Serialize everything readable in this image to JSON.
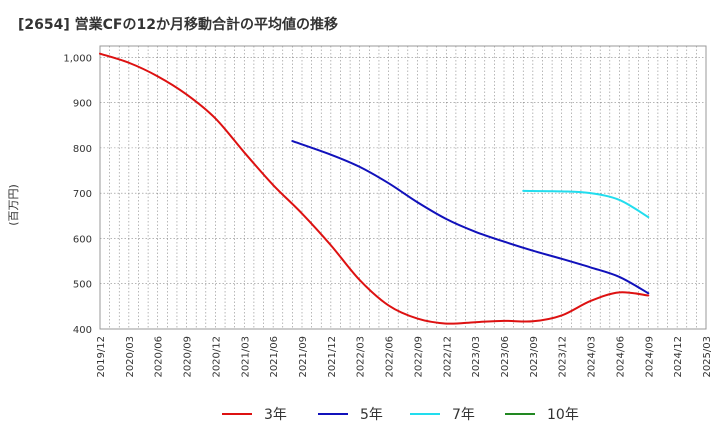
{
  "title": "[2654]  営業CFの12か月移動合計の平均値の推移",
  "chart_data": {
    "type": "line",
    "title": "[2654]  営業CFの12か月移動合計の平均値の推移",
    "ylabel": "(百万円)",
    "xlabel": "",
    "ylim": [
      400,
      1025
    ],
    "yticks": [
      400,
      500,
      600,
      700,
      800,
      900,
      1000
    ],
    "ytick_labels": [
      "400",
      "500",
      "600",
      "700",
      "800",
      "900",
      "1,000"
    ],
    "x_start": "2019-12",
    "x_end": "2025-03",
    "xtick_labels": [
      "2019/12",
      "2020/03",
      "2020/06",
      "2020/09",
      "2020/12",
      "2021/03",
      "2021/06",
      "2021/09",
      "2021/12",
      "2022/03",
      "2022/06",
      "2022/09",
      "2022/12",
      "2023/03",
      "2023/06",
      "2023/09",
      "2023/12",
      "2024/03",
      "2024/06",
      "2024/09",
      "2024/12",
      "2025/03"
    ],
    "grid": true,
    "legend_position": "bottom",
    "series": [
      {
        "name": "3年",
        "color": "#dd1111",
        "points": [
          [
            "2019-12",
            1008
          ],
          [
            "2020-03",
            988
          ],
          [
            "2020-06",
            958
          ],
          [
            "2020-09",
            918
          ],
          [
            "2020-12",
            865
          ],
          [
            "2021-03",
            790
          ],
          [
            "2021-06",
            718
          ],
          [
            "2021-09",
            655
          ],
          [
            "2021-12",
            585
          ],
          [
            "2022-03",
            508
          ],
          [
            "2022-06",
            452
          ],
          [
            "2022-09",
            423
          ],
          [
            "2022-12",
            412
          ],
          [
            "2023-03",
            415
          ],
          [
            "2023-06",
            418
          ],
          [
            "2023-09",
            417
          ],
          [
            "2023-12",
            430
          ],
          [
            "2024-03",
            462
          ],
          [
            "2024-06",
            481
          ],
          [
            "2024-09",
            474
          ]
        ]
      },
      {
        "name": "5年",
        "color": "#1111bb",
        "points": [
          [
            "2021-08",
            815
          ],
          [
            "2021-12",
            785
          ],
          [
            "2022-03",
            758
          ],
          [
            "2022-06",
            722
          ],
          [
            "2022-09",
            680
          ],
          [
            "2022-12",
            643
          ],
          [
            "2023-03",
            615
          ],
          [
            "2023-06",
            593
          ],
          [
            "2023-09",
            573
          ],
          [
            "2023-12",
            555
          ],
          [
            "2024-03",
            536
          ],
          [
            "2024-06",
            515
          ],
          [
            "2024-09",
            479
          ]
        ]
      },
      {
        "name": "7年",
        "color": "#22ddee",
        "points": [
          [
            "2023-08",
            705
          ],
          [
            "2023-12",
            704
          ],
          [
            "2024-03",
            700
          ],
          [
            "2024-06",
            685
          ],
          [
            "2024-09",
            647
          ]
        ]
      },
      {
        "name": "10年",
        "color": "#228822",
        "points": []
      }
    ]
  }
}
